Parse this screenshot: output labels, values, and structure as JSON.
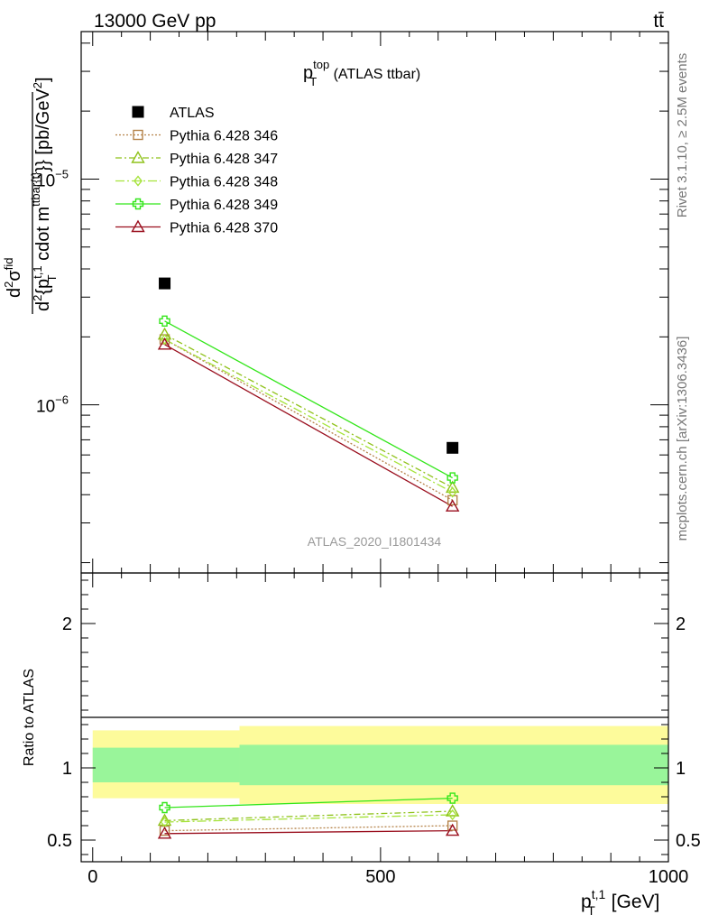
{
  "header": {
    "beam_label": "13000 GeV pp",
    "process_label": "tt̄"
  },
  "side_labels": {
    "rivet": "Rivet 3.1.10, ≥ 2.5M events",
    "mcplots": "mcplots.cern.ch [arXiv:1306.3436]"
  },
  "analysis_id": "ATLAS_2020_I1801434",
  "chart_data": [
    {
      "type": "line",
      "panel": "main",
      "title_main": "p",
      "title_sup": "top",
      "title_sub": "T",
      "title_rest": " (ATLAS ttbar)",
      "ylabel": "d²σ^{fid} / d² {p_T^{t,1} cdot m_{ttbar{t}}} [pb/GeV²]",
      "ylabel_parts": {
        "num": "d",
        "num_sup": "2",
        "sigma": "σ",
        "sigma_sup": "fid",
        "den_d": "d",
        "den_sup": "2",
        "den_brace": "{p",
        "den_p_sup": "t,1",
        "den_p_sub": "T",
        "den_mid": " cdot m",
        "den_m_sub": "ttbar{t}",
        "den_end": "}} [pb/GeV",
        "unit_sup": "2",
        "unit_end": "]"
      },
      "yscale": "log",
      "ylim": [
        1.8e-07,
        4.5e-05
      ],
      "xlim": [
        -20,
        1000
      ],
      "ytick_labels": [
        {
          "value": 1e-06,
          "base": "10",
          "exp": "−6"
        },
        {
          "value": 1e-05,
          "base": "10",
          "exp": "−5"
        }
      ],
      "legend_placement": "top-left",
      "series": [
        {
          "name": "ATLAS",
          "color": "#000000",
          "marker": "square",
          "style": "none",
          "x": [
            125,
            625
          ],
          "y": [
            3.45e-06,
            6.45e-07
          ]
        },
        {
          "name": "Pythia 6.428 346",
          "color": "#b5834a",
          "marker": "square-open",
          "style": "dotted",
          "x": [
            125,
            625
          ],
          "y": [
            1.95e-06,
            3.78e-07
          ]
        },
        {
          "name": "Pythia 6.428 347",
          "color": "#8fc21a",
          "marker": "triangle-open",
          "style": "dashdot",
          "x": [
            125,
            625
          ],
          "y": [
            2.05e-06,
            4.3e-07
          ]
        },
        {
          "name": "Pythia 6.428 348",
          "color": "#a5e33a",
          "marker": "diamond-open",
          "style": "dashdot2",
          "x": [
            125,
            625
          ],
          "y": [
            1.95e-06,
            4.1e-07
          ]
        },
        {
          "name": "Pythia 6.428 349",
          "color": "#33e61a",
          "marker": "cross",
          "style": "solid",
          "x": [
            125,
            625
          ],
          "y": [
            2.35e-06,
            4.75e-07
          ]
        },
        {
          "name": "Pythia 6.428 370",
          "color": "#9a0f1e",
          "marker": "triangle-open",
          "style": "solid",
          "x": [
            125,
            625
          ],
          "y": [
            1.85e-06,
            3.55e-07
          ]
        }
      ]
    },
    {
      "type": "line",
      "panel": "ratio",
      "ylabel": "Ratio to ATLAS",
      "xlabel_main": "p",
      "xlabel_sup": "t,1",
      "xlabel_sub": "T",
      "xlabel_rest": " [GeV]",
      "xlim": [
        -20,
        1000
      ],
      "ylim": [
        0.35,
        2.35
      ],
      "xticks": [
        0,
        500,
        1000
      ],
      "yticks": [
        0.5,
        1,
        2
      ],
      "bands": [
        {
          "x0": 0,
          "x1": 255,
          "yellow": [
            0.79,
            1.26
          ],
          "green": [
            0.9,
            1.14
          ]
        },
        {
          "x0": 255,
          "x1": 1000,
          "yellow": [
            0.75,
            1.29
          ],
          "green": [
            0.88,
            1.16
          ]
        }
      ],
      "series": [
        {
          "name": "Pythia 6.428 346",
          "color": "#b5834a",
          "marker": "square-open",
          "style": "dotted",
          "x": [
            125,
            625
          ],
          "y": [
            0.565,
            0.6
          ]
        },
        {
          "name": "Pythia 6.428 347",
          "color": "#8fc21a",
          "marker": "triangle-open",
          "style": "dashdot",
          "x": [
            125,
            625
          ],
          "y": [
            0.635,
            0.7
          ]
        },
        {
          "name": "Pythia 6.428 348",
          "color": "#a5e33a",
          "marker": "diamond-open",
          "style": "dashdot2",
          "x": [
            125,
            625
          ],
          "y": [
            0.625,
            0.675
          ]
        },
        {
          "name": "Pythia 6.428 349",
          "color": "#33e61a",
          "marker": "cross",
          "style": "solid",
          "x": [
            125,
            625
          ],
          "y": [
            0.725,
            0.79
          ]
        },
        {
          "name": "Pythia 6.428 370",
          "color": "#9a0f1e",
          "marker": "triangle-open",
          "style": "solid",
          "x": [
            125,
            625
          ],
          "y": [
            0.545,
            0.565
          ]
        }
      ]
    }
  ]
}
